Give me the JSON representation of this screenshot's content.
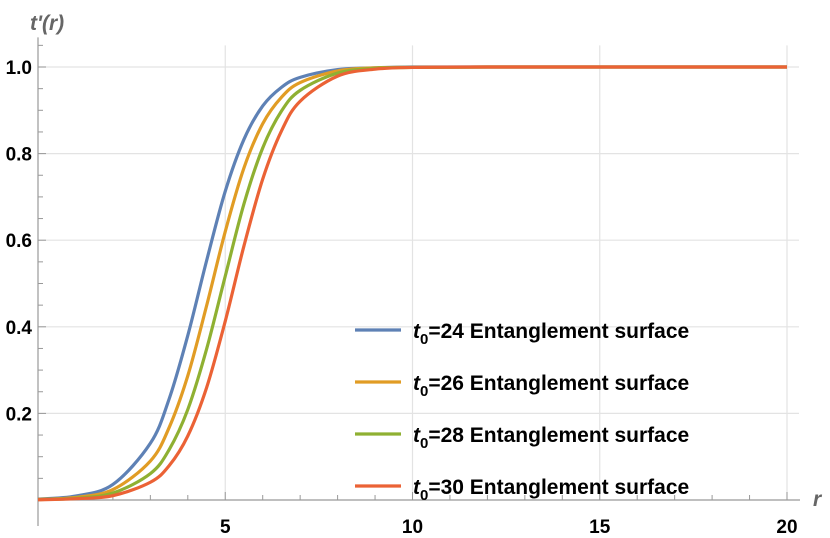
{
  "chart_data": {
    "type": "line",
    "title": "",
    "xlabel": "r",
    "ylabel": "t'(r)",
    "xlim": [
      0,
      20
    ],
    "ylim": [
      0,
      1.05
    ],
    "xticks": [
      5,
      10,
      15,
      20
    ],
    "xtick_labels": [
      "5",
      "10",
      "15",
      "20"
    ],
    "yticks": [
      0.2,
      0.4,
      0.6,
      0.8,
      1.0
    ],
    "ytick_labels": [
      "0.2",
      "0.4",
      "0.6",
      "0.8",
      "1.0"
    ],
    "grid": true,
    "legend_position": "bottom-right",
    "x": [
      0,
      1,
      2,
      3,
      3.5,
      4,
      4.5,
      5,
      5.5,
      6,
      6.5,
      7,
      8,
      9,
      10,
      12,
      15,
      20
    ],
    "series": [
      {
        "name_prefix": "t",
        "name_sub": "0",
        "name_rest": "=24 Entanglement surface",
        "color": "#5E81B5",
        "values": [
          0.002,
          0.009,
          0.036,
          0.131,
          0.233,
          0.38,
          0.552,
          0.713,
          0.833,
          0.91,
          0.953,
          0.976,
          0.994,
          0.998,
          1.0,
          1.0,
          1.0,
          1.0
        ]
      },
      {
        "name_prefix": "t",
        "name_sub": "0",
        "name_rest": "=26 Entanglement surface",
        "color": "#E19C24",
        "values": [
          0.0015,
          0.006,
          0.024,
          0.09,
          0.167,
          0.287,
          0.448,
          0.62,
          0.767,
          0.869,
          0.93,
          0.964,
          0.991,
          0.998,
          0.999,
          1.0,
          1.0,
          1.0
        ]
      },
      {
        "name_prefix": "t",
        "name_sub": "0",
        "name_rest": "=28 Entanglement surface",
        "color": "#8FB032",
        "values": [
          0.001,
          0.004,
          0.016,
          0.061,
          0.116,
          0.209,
          0.348,
          0.517,
          0.684,
          0.813,
          0.898,
          0.946,
          0.986,
          0.997,
          0.999,
          1.0,
          1.0,
          1.0
        ]
      },
      {
        "name_prefix": "t",
        "name_sub": "0",
        "name_rest": "=30 Entanglement surface",
        "color": "#EB6235",
        "values": [
          0.0006,
          0.003,
          0.01,
          0.041,
          0.079,
          0.148,
          0.259,
          0.413,
          0.587,
          0.741,
          0.852,
          0.921,
          0.979,
          0.995,
          0.999,
          1.0,
          1.0,
          1.0
        ]
      }
    ]
  }
}
